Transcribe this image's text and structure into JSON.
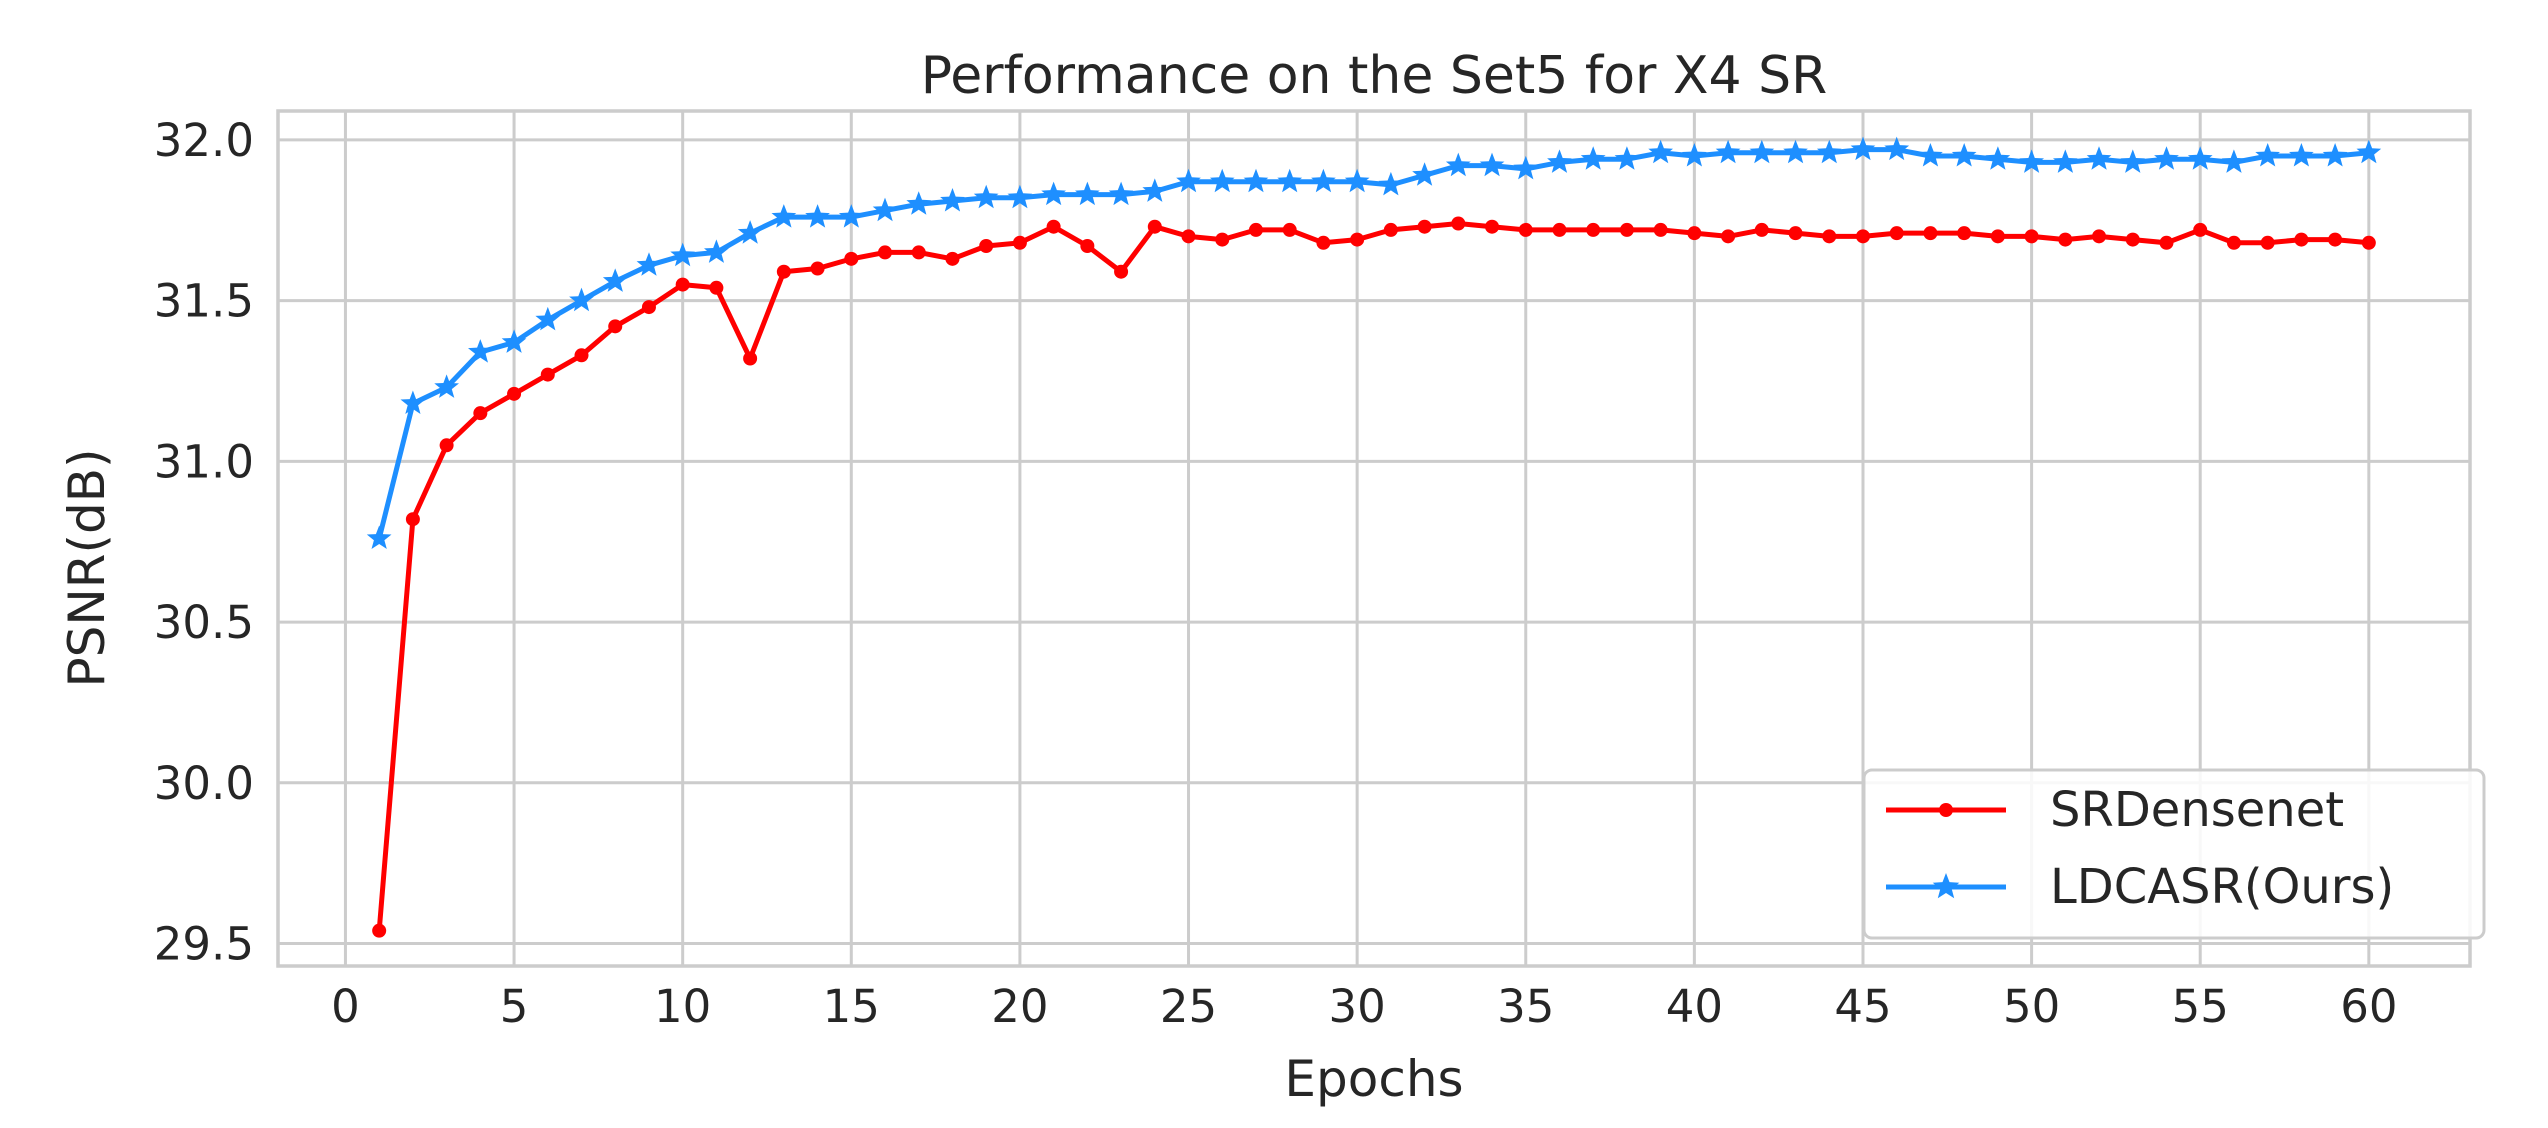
{
  "chart_data": {
    "type": "line",
    "title": "Performance on the Set5 for X4 SR",
    "xlabel": "Epochs",
    "ylabel": "PSNR(dB)",
    "xlim": [
      -2,
      63
    ],
    "ylim": [
      29.43,
      32.09
    ],
    "xticks": [
      0,
      5,
      10,
      15,
      20,
      25,
      30,
      35,
      40,
      45,
      50,
      55,
      60
    ],
    "yticks": [
      29.5,
      30.0,
      30.5,
      31.0,
      31.5,
      32.0
    ],
    "ytick_labels": [
      "29.5",
      "30.0",
      "30.5",
      "31.0",
      "31.5",
      "32.0"
    ],
    "grid": true,
    "legend_position": "lower-right",
    "x": [
      1,
      2,
      3,
      4,
      5,
      6,
      7,
      8,
      9,
      10,
      11,
      12,
      13,
      14,
      15,
      16,
      17,
      18,
      19,
      20,
      21,
      22,
      23,
      24,
      25,
      26,
      27,
      28,
      29,
      30,
      31,
      32,
      33,
      34,
      35,
      36,
      37,
      38,
      39,
      40,
      41,
      42,
      43,
      44,
      45,
      46,
      47,
      48,
      49,
      50,
      51,
      52,
      53,
      54,
      55,
      56,
      57,
      58,
      59,
      60
    ],
    "series": [
      {
        "name": "SRDensenet",
        "color": "#ff0000",
        "marker": "dot",
        "values": [
          29.54,
          30.82,
          31.05,
          31.15,
          31.21,
          31.27,
          31.33,
          31.42,
          31.48,
          31.55,
          31.54,
          31.32,
          31.59,
          31.6,
          31.63,
          31.65,
          31.65,
          31.63,
          31.67,
          31.68,
          31.73,
          31.67,
          31.59,
          31.73,
          31.7,
          31.69,
          31.72,
          31.72,
          31.68,
          31.69,
          31.72,
          31.73,
          31.74,
          31.73,
          31.72,
          31.72,
          31.72,
          31.72,
          31.72,
          31.71,
          31.7,
          31.72,
          31.71,
          31.7,
          31.7,
          31.71,
          31.71,
          31.71,
          31.7,
          31.7,
          31.69,
          31.7,
          31.69,
          31.68,
          31.72,
          31.68,
          31.68,
          31.69,
          31.69,
          31.68
        ]
      },
      {
        "name": "LDCASR(Ours)",
        "color": "#1e8fff",
        "marker": "star",
        "values": [
          30.76,
          31.18,
          31.23,
          31.34,
          31.37,
          31.44,
          31.5,
          31.56,
          31.61,
          31.64,
          31.65,
          31.71,
          31.76,
          31.76,
          31.76,
          31.78,
          31.8,
          31.81,
          31.82,
          31.82,
          31.83,
          31.83,
          31.83,
          31.84,
          31.87,
          31.87,
          31.87,
          31.87,
          31.87,
          31.87,
          31.86,
          31.89,
          31.92,
          31.92,
          31.91,
          31.93,
          31.94,
          31.94,
          31.96,
          31.95,
          31.96,
          31.96,
          31.96,
          31.96,
          31.97,
          31.97,
          31.95,
          31.95,
          31.94,
          31.93,
          31.93,
          31.94,
          31.93,
          31.94,
          31.94,
          31.93,
          31.95,
          31.95,
          31.95,
          31.96
        ]
      }
    ]
  }
}
